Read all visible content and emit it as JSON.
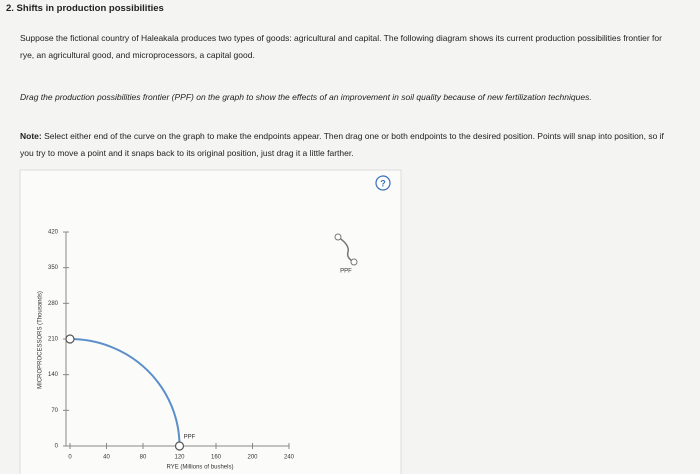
{
  "header": {
    "title": "2. Shifts in production possibilities"
  },
  "intro": "Suppose the fictional country of Haleakala produces two types of goods: agricultural and capital. The following diagram shows its current production possibilities frontier for rye, an agricultural good, and microprocessors, a capital good.",
  "instruction": "Drag the production possibilities frontier (PPF) on the graph to show the effects of an improvement in soil quality because of new fertilization techniques.",
  "note": {
    "label": "Note:",
    "text": "Select either end of the curve on the graph to make the endpoints appear. Then drag one or both endpoints to the desired position. Points will snap into position, so if you try to move a point and it snaps back to its original position, just drag it a little farther."
  },
  "help": "?",
  "chart_data": {
    "type": "line",
    "x_label": "RYE (Millions of bushels)",
    "y_label": "MICROPROCESSORS (Thousands)",
    "xlim": [
      0,
      240
    ],
    "xticks": [
      0,
      40,
      80,
      120,
      160,
      200,
      240
    ],
    "ylim": [
      0,
      420
    ],
    "yticks": [
      0,
      70,
      140,
      210,
      280,
      350,
      420
    ],
    "series": [
      {
        "name": "PPF",
        "color": "#5b8fc9",
        "x": [
          0,
          120
        ],
        "values": [
          210,
          0
        ]
      }
    ],
    "curve_label": "PPF",
    "legend": "PPF"
  }
}
